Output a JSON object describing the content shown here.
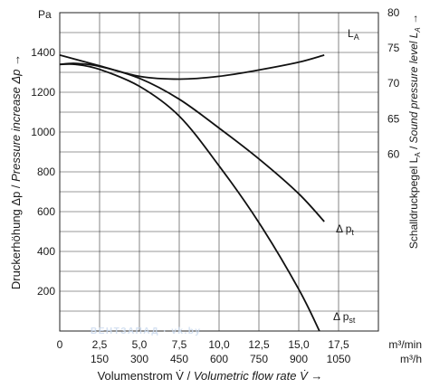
{
  "chart_data": {
    "type": "line",
    "left_axis": {
      "unit": "Pa",
      "label_plain": "Druckerhöhung Δp / ",
      "label_italic": "Pressure increase Δp",
      "arrow": "→",
      "range": [
        0,
        1600
      ],
      "ticks": [
        "200",
        "400",
        "600",
        "800",
        "1000",
        "1200",
        "1400"
      ]
    },
    "right_axis": {
      "label_plain": "Schalldruckpegel L",
      "label_plain_sub": "A",
      "label_sep": " / ",
      "label_italic": "Sound pressure level L",
      "label_italic_sub": "A",
      "arrow": "→",
      "range": [
        35,
        80
      ],
      "ticks": [
        "60",
        "65",
        "70",
        "75",
        "80"
      ]
    },
    "x_axis": {
      "label_plain": "Volumenstrom V̇ / ",
      "label_italic": "Volumetric flow rate V̇",
      "arrow": "→",
      "range": [
        0,
        20
      ],
      "ticks_m3min": [
        "0",
        "2,5",
        "5,0",
        "7,5",
        "10,0",
        "12,5",
        "15,0",
        "17,5"
      ],
      "ticks_m3h": [
        "150",
        "300",
        "450",
        "600",
        "750",
        "900",
        "1050"
      ],
      "unit_m3min": "m³/min",
      "unit_m3h": "m³/h"
    },
    "series": [
      {
        "name": "LA",
        "label": "L",
        "label_sub": "A",
        "axis": "right",
        "points": [
          [
            0,
            74
          ],
          [
            2.5,
            72.5
          ],
          [
            5,
            71
          ],
          [
            7.5,
            70.6
          ],
          [
            10,
            71
          ],
          [
            12.5,
            71.9
          ],
          [
            15,
            73
          ],
          [
            16.6,
            74
          ]
        ]
      },
      {
        "name": "Δpt",
        "label": "Δ p",
        "label_sub": "t",
        "axis": "left",
        "points": [
          [
            0,
            1340
          ],
          [
            1,
            1345
          ],
          [
            2.5,
            1330
          ],
          [
            5,
            1270
          ],
          [
            7.5,
            1165
          ],
          [
            10,
            1020
          ],
          [
            12.5,
            865
          ],
          [
            15,
            690
          ],
          [
            16.6,
            550
          ]
        ]
      },
      {
        "name": "Δpst",
        "label": "Δ p",
        "label_sub": "st",
        "axis": "left",
        "points": [
          [
            0,
            1340
          ],
          [
            1,
            1340
          ],
          [
            2.5,
            1315
          ],
          [
            5,
            1230
          ],
          [
            7.5,
            1080
          ],
          [
            10,
            830
          ],
          [
            12.5,
            545
          ],
          [
            15,
            210
          ],
          [
            16.3,
            0
          ]
        ]
      }
    ],
    "grid": true
  },
  "watermark": "ВЕНТЗАПАД · vk.by"
}
